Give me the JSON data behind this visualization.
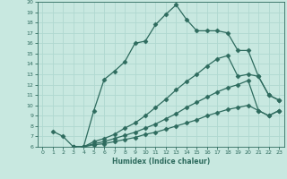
{
  "xlabel": "Humidex (Indice chaleur)",
  "ylabel": "",
  "xlim": [
    -0.5,
    23.5
  ],
  "ylim": [
    6,
    20
  ],
  "yticks": [
    6,
    7,
    8,
    9,
    10,
    11,
    12,
    13,
    14,
    15,
    16,
    17,
    18,
    19,
    20
  ],
  "xticks": [
    0,
    1,
    2,
    3,
    4,
    5,
    6,
    7,
    8,
    9,
    10,
    11,
    12,
    13,
    14,
    15,
    16,
    17,
    18,
    19,
    20,
    21,
    22,
    23
  ],
  "bg_color": "#c8e8e0",
  "line_color": "#2e6b5e",
  "grid_color": "#b0d8d0",
  "lines": [
    {
      "x": [
        1,
        2,
        3,
        4,
        5,
        6,
        7,
        8,
        9,
        10,
        11,
        12,
        13,
        14,
        15,
        16,
        17,
        18,
        19,
        20,
        21,
        22,
        23
      ],
      "y": [
        7.5,
        7.0,
        6.0,
        6.0,
        9.5,
        12.5,
        13.3,
        14.2,
        16.0,
        16.2,
        17.8,
        18.8,
        19.7,
        18.3,
        17.2,
        17.2,
        17.2,
        17.0,
        15.3,
        15.3,
        12.8,
        11.0,
        10.5
      ]
    },
    {
      "x": [
        3,
        4,
        5,
        6,
        7,
        8,
        9,
        10,
        11,
        12,
        13,
        14,
        15,
        16,
        17,
        18,
        19,
        20,
        21,
        22,
        23
      ],
      "y": [
        6.0,
        6.0,
        6.5,
        6.8,
        7.2,
        7.8,
        8.3,
        9.0,
        9.8,
        10.6,
        11.5,
        12.3,
        13.0,
        13.8,
        14.5,
        14.8,
        12.8,
        13.0,
        12.8,
        11.0,
        10.5
      ]
    },
    {
      "x": [
        3,
        4,
        5,
        6,
        7,
        8,
        9,
        10,
        11,
        12,
        13,
        14,
        15,
        16,
        17,
        18,
        19,
        20,
        21,
        22,
        23
      ],
      "y": [
        6.0,
        6.0,
        6.3,
        6.5,
        6.8,
        7.1,
        7.4,
        7.8,
        8.2,
        8.7,
        9.2,
        9.8,
        10.3,
        10.8,
        11.3,
        11.7,
        12.0,
        12.4,
        9.5,
        9.0,
        9.5
      ]
    },
    {
      "x": [
        3,
        4,
        5,
        6,
        7,
        8,
        9,
        10,
        11,
        12,
        13,
        14,
        15,
        16,
        17,
        18,
        19,
        20,
        21,
        22,
        23
      ],
      "y": [
        6.0,
        6.0,
        6.2,
        6.3,
        6.5,
        6.7,
        6.9,
        7.2,
        7.4,
        7.7,
        8.0,
        8.3,
        8.6,
        9.0,
        9.3,
        9.6,
        9.8,
        10.0,
        9.5,
        9.0,
        9.5
      ]
    }
  ],
  "font_color": "#2e6b5e",
  "marker": "D",
  "markersize": 2.5,
  "linewidth": 0.9
}
